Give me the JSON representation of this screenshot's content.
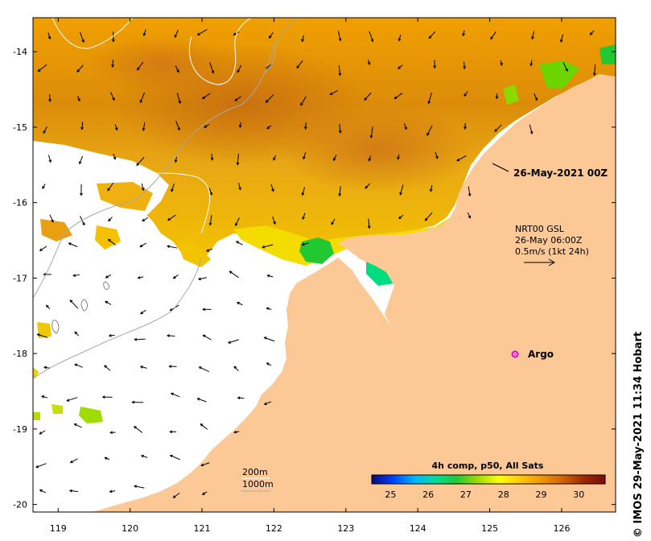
{
  "map": {
    "lon_ticks": [
      "119",
      "120",
      "121",
      "122",
      "123",
      "124",
      "125",
      "126"
    ],
    "lat_ticks": [
      "-14",
      "-15",
      "-16",
      "-17",
      "-18",
      "-19",
      "-20"
    ],
    "lon_range": [
      118.65,
      126.75
    ],
    "lat_range": [
      -20.1,
      -13.55
    ],
    "land_color": "#fcc896",
    "no_data_color": "#ffffff"
  },
  "annotations": {
    "timestamp": "26-May-2021 00Z",
    "current_product": "NRT00 GSL",
    "current_time": "26-May 06:00Z",
    "current_scale": "0.5m/s (1kt 24h)",
    "argo_label": "Argo",
    "contour_200": "200m",
    "contour_1000": "1000m",
    "credit": "© IMOS 29-May-2021 11:34 Hobart"
  },
  "colorbar": {
    "title": "4h comp, p50, All Sats",
    "ticks": [
      "25",
      "26",
      "27",
      "28",
      "29",
      "30"
    ],
    "range": [
      24.5,
      30.7
    ],
    "colors": [
      "#0a0a78",
      "#0040ff",
      "#00b4ff",
      "#00dc9a",
      "#22c832",
      "#a0dc00",
      "#ffff00",
      "#ffc800",
      "#f09600",
      "#d26400",
      "#a02800",
      "#780a0a"
    ]
  }
}
